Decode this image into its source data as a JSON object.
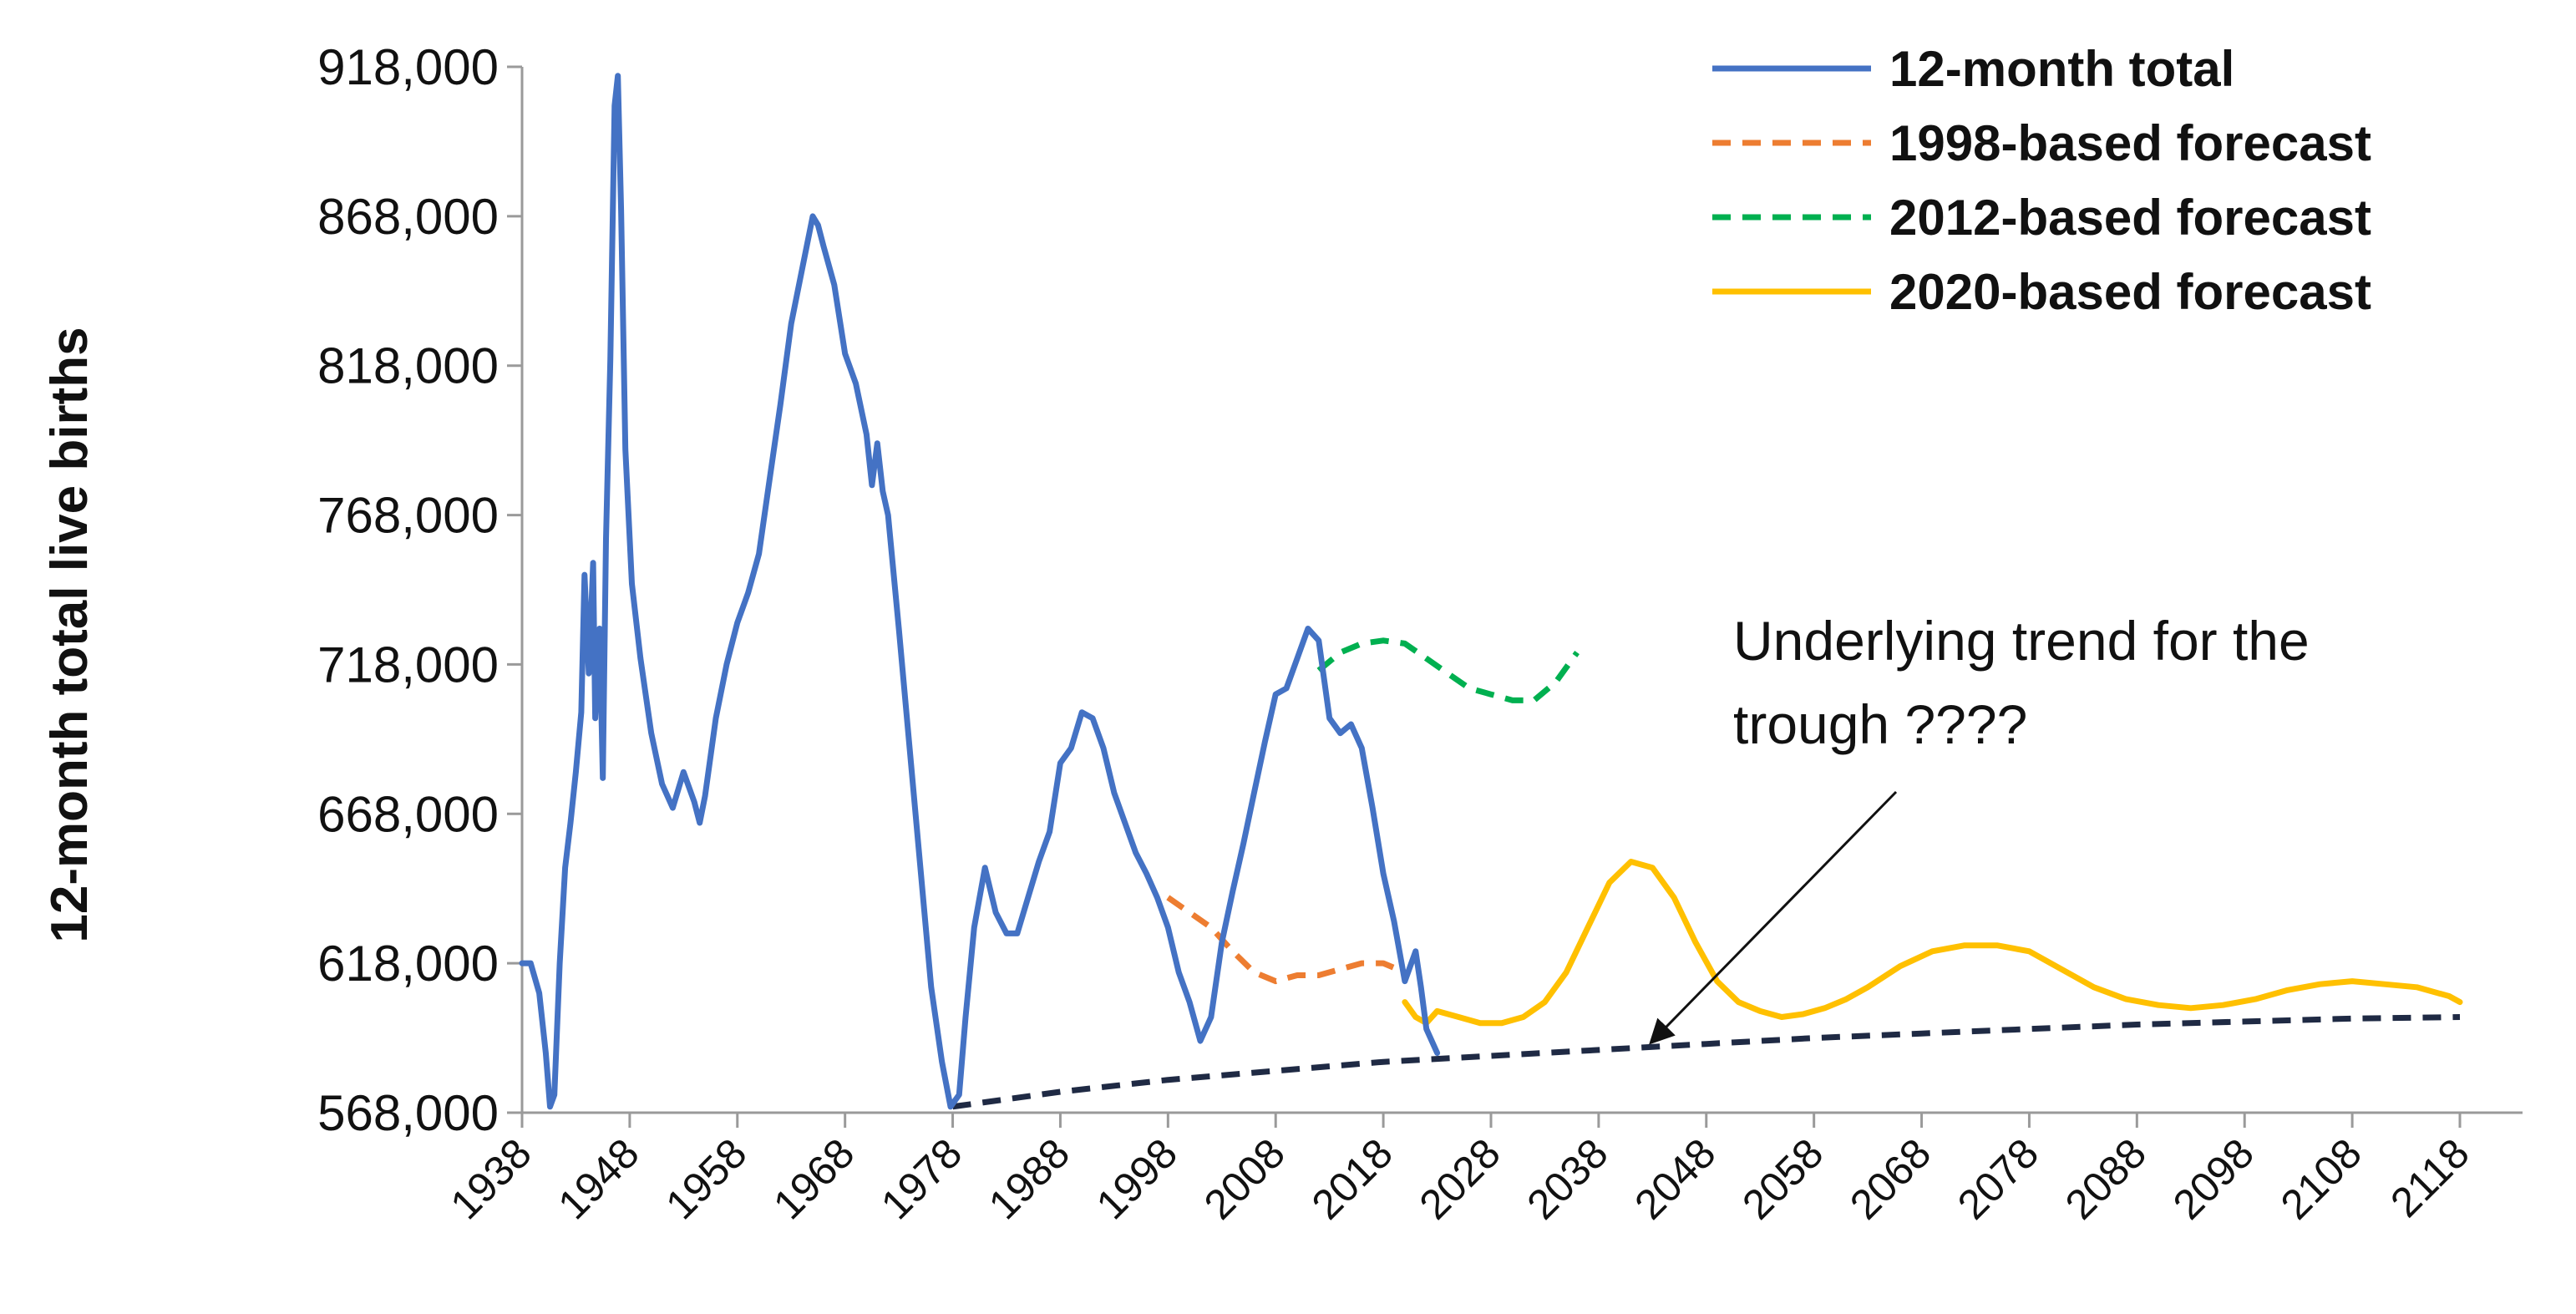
{
  "chart_data": {
    "type": "line",
    "ylabel": "12-month total live births",
    "xlabel": "",
    "xlim": [
      1938,
      2128
    ],
    "ylim": [
      568000,
      918000
    ],
    "yticks": [
      568000,
      618000,
      668000,
      718000,
      768000,
      818000,
      868000,
      918000
    ],
    "ytick_labels": [
      "568,000",
      "618,000",
      "668,000",
      "718,000",
      "768,000",
      "818,000",
      "868,000",
      "918,000"
    ],
    "xticks": [
      1938,
      1948,
      1958,
      1968,
      1978,
      1988,
      1998,
      2008,
      2018,
      2028,
      2038,
      2048,
      2058,
      2068,
      2078,
      2088,
      2098,
      2108,
      2118
    ],
    "xtick_labels": [
      "1938",
      "1948",
      "1958",
      "1968",
      "1978",
      "1988",
      "1998",
      "2008",
      "2018",
      "2028",
      "2038",
      "2048",
      "2058",
      "2068",
      "2078",
      "2088",
      "2098",
      "2108",
      "2118"
    ],
    "grid": false,
    "legend_position": "top-right",
    "series": [
      {
        "name": "12-month total",
        "color": "#4472C4",
        "dash": "solid",
        "points": [
          [
            1938,
            618000
          ],
          [
            1938.8,
            618000
          ],
          [
            1939.6,
            608000
          ],
          [
            1940.2,
            588000
          ],
          [
            1940.6,
            570000
          ],
          [
            1941.0,
            574000
          ],
          [
            1941.5,
            618000
          ],
          [
            1942.0,
            650000
          ],
          [
            1942.5,
            665000
          ],
          [
            1943.0,
            682000
          ],
          [
            1943.5,
            702000
          ],
          [
            1943.8,
            748000
          ],
          [
            1944.2,
            715000
          ],
          [
            1944.6,
            752000
          ],
          [
            1944.8,
            700000
          ],
          [
            1945.2,
            730000
          ],
          [
            1945.5,
            680000
          ],
          [
            1945.8,
            760000
          ],
          [
            1946.2,
            820000
          ],
          [
            1946.6,
            905000
          ],
          [
            1946.9,
            915000
          ],
          [
            1947.2,
            870000
          ],
          [
            1947.6,
            790000
          ],
          [
            1948.2,
            745000
          ],
          [
            1949.0,
            720000
          ],
          [
            1950.0,
            695000
          ],
          [
            1951.0,
            678000
          ],
          [
            1952.0,
            670000
          ],
          [
            1953.0,
            682000
          ],
          [
            1954.0,
            672000
          ],
          [
            1954.5,
            665000
          ],
          [
            1955.0,
            674000
          ],
          [
            1956.0,
            700000
          ],
          [
            1957.0,
            718000
          ],
          [
            1958.0,
            732000
          ],
          [
            1959.0,
            742000
          ],
          [
            1960.0,
            755000
          ],
          [
            1961.0,
            780000
          ],
          [
            1962.0,
            805000
          ],
          [
            1963.0,
            832000
          ],
          [
            1964.0,
            850000
          ],
          [
            1965.0,
            868000
          ],
          [
            1965.5,
            865000
          ],
          [
            1966.0,
            858000
          ],
          [
            1967.0,
            845000
          ],
          [
            1968.0,
            822000
          ],
          [
            1969.0,
            812000
          ],
          [
            1970.0,
            795000
          ],
          [
            1970.5,
            778000
          ],
          [
            1971.0,
            792000
          ],
          [
            1971.5,
            776000
          ],
          [
            1972.0,
            768000
          ],
          [
            1973.0,
            730000
          ],
          [
            1974.0,
            690000
          ],
          [
            1975.0,
            650000
          ],
          [
            1976.0,
            610000
          ],
          [
            1977.0,
            585000
          ],
          [
            1977.8,
            570000
          ],
          [
            1978.6,
            574000
          ],
          [
            1979.2,
            600000
          ],
          [
            1980.0,
            630000
          ],
          [
            1981.0,
            650000
          ],
          [
            1982.0,
            635000
          ],
          [
            1983.0,
            628000
          ],
          [
            1984.0,
            628000
          ],
          [
            1985.0,
            640000
          ],
          [
            1986.0,
            652000
          ],
          [
            1987.0,
            662000
          ],
          [
            1988.0,
            685000
          ],
          [
            1989.0,
            690000
          ],
          [
            1990.0,
            702000
          ],
          [
            1991.0,
            700000
          ],
          [
            1992.0,
            690000
          ],
          [
            1993.0,
            675000
          ],
          [
            1994.0,
            665000
          ],
          [
            1995.0,
            655000
          ],
          [
            1996.0,
            648000
          ],
          [
            1997.0,
            640000
          ],
          [
            1998.0,
            630000
          ],
          [
            1999.0,
            615000
          ],
          [
            2000.0,
            605000
          ],
          [
            2001.0,
            592000
          ],
          [
            2002.0,
            600000
          ],
          [
            2003.0,
            625000
          ],
          [
            2004.0,
            642000
          ],
          [
            2005.0,
            658000
          ],
          [
            2006.0,
            675000
          ],
          [
            2007.0,
            692000
          ],
          [
            2008.0,
            708000
          ],
          [
            2009.0,
            710000
          ],
          [
            2010.0,
            720000
          ],
          [
            2011.0,
            730000
          ],
          [
            2012.0,
            726000
          ],
          [
            2013.0,
            700000
          ],
          [
            2014.0,
            695000
          ],
          [
            2015.0,
            698000
          ],
          [
            2016.0,
            690000
          ],
          [
            2017.0,
            670000
          ],
          [
            2018.0,
            648000
          ],
          [
            2019.0,
            632000
          ],
          [
            2020.0,
            612000
          ],
          [
            2021.0,
            622000
          ],
          [
            2021.5,
            610000
          ],
          [
            2022.0,
            596000
          ],
          [
            2023.0,
            588000
          ]
        ]
      },
      {
        "name": "1998-based forecast",
        "color": "#ED7D31",
        "dash": "dashed",
        "points": [
          [
            1998,
            640000
          ],
          [
            2000,
            635000
          ],
          [
            2002,
            630000
          ],
          [
            2004,
            622000
          ],
          [
            2006,
            615000
          ],
          [
            2008,
            612000
          ],
          [
            2010,
            614000
          ],
          [
            2012,
            614000
          ],
          [
            2014,
            616000
          ],
          [
            2016,
            618000
          ],
          [
            2018,
            618000
          ],
          [
            2020,
            615000
          ]
        ]
      },
      {
        "name": "2012-based forecast",
        "color": "#00B050",
        "dash": "dashed",
        "points": [
          [
            2012,
            716000
          ],
          [
            2014,
            722000
          ],
          [
            2016,
            725000
          ],
          [
            2018,
            726000
          ],
          [
            2020,
            725000
          ],
          [
            2022,
            720000
          ],
          [
            2024,
            715000
          ],
          [
            2026,
            710000
          ],
          [
            2028,
            708000
          ],
          [
            2030,
            706000
          ],
          [
            2032,
            706000
          ],
          [
            2034,
            712000
          ],
          [
            2036,
            722000
          ]
        ]
      },
      {
        "name": "2020-based forecast",
        "color": "#FFC000",
        "dash": "solid",
        "points": [
          [
            2020,
            605000
          ],
          [
            2021,
            600000
          ],
          [
            2022,
            598000
          ],
          [
            2023,
            602000
          ],
          [
            2025,
            600000
          ],
          [
            2027,
            598000
          ],
          [
            2029,
            598000
          ],
          [
            2031,
            600000
          ],
          [
            2033,
            605000
          ],
          [
            2035,
            615000
          ],
          [
            2037,
            630000
          ],
          [
            2039,
            645000
          ],
          [
            2041,
            652000
          ],
          [
            2043,
            650000
          ],
          [
            2045,
            640000
          ],
          [
            2047,
            625000
          ],
          [
            2049,
            612000
          ],
          [
            2051,
            605000
          ],
          [
            2053,
            602000
          ],
          [
            2055,
            600000
          ],
          [
            2057,
            601000
          ],
          [
            2059,
            603000
          ],
          [
            2061,
            606000
          ],
          [
            2063,
            610000
          ],
          [
            2066,
            617000
          ],
          [
            2069,
            622000
          ],
          [
            2072,
            624000
          ],
          [
            2075,
            624000
          ],
          [
            2078,
            622000
          ],
          [
            2081,
            616000
          ],
          [
            2084,
            610000
          ],
          [
            2087,
            606000
          ],
          [
            2090,
            604000
          ],
          [
            2093,
            603000
          ],
          [
            2096,
            604000
          ],
          [
            2099,
            606000
          ],
          [
            2102,
            609000
          ],
          [
            2105,
            611000
          ],
          [
            2108,
            612000
          ],
          [
            2111,
            611000
          ],
          [
            2114,
            610000
          ],
          [
            2117,
            607000
          ],
          [
            2118,
            605000
          ]
        ]
      },
      {
        "name": "",
        "color": "#1F2A44",
        "dash": "dashed",
        "points": [
          [
            1978,
            570000
          ],
          [
            1988,
            575000
          ],
          [
            1998,
            579000
          ],
          [
            2008,
            582000
          ],
          [
            2018,
            585000
          ],
          [
            2028,
            587000
          ],
          [
            2038,
            589000
          ],
          [
            2048,
            591000
          ],
          [
            2058,
            593000
          ],
          [
            2068,
            594500
          ],
          [
            2078,
            596000
          ],
          [
            2088,
            597500
          ],
          [
            2098,
            598500
          ],
          [
            2108,
            599500
          ],
          [
            2118,
            600000
          ]
        ]
      }
    ],
    "annotations": [
      {
        "text_lines": [
          "Underlying trend for the",
          "trough ????"
        ],
        "points_to": [
          2043,
          592000
        ]
      }
    ]
  },
  "legend": {
    "items": [
      {
        "label": "12-month total",
        "color": "#4472C4",
        "dash": "solid"
      },
      {
        "label": "1998-based forecast",
        "color": "#ED7D31",
        "dash": "dashed"
      },
      {
        "label": "2012-based forecast",
        "color": "#00B050",
        "dash": "dashed"
      },
      {
        "label": "2020-based forecast",
        "color": "#FFC000",
        "dash": "solid"
      }
    ]
  }
}
